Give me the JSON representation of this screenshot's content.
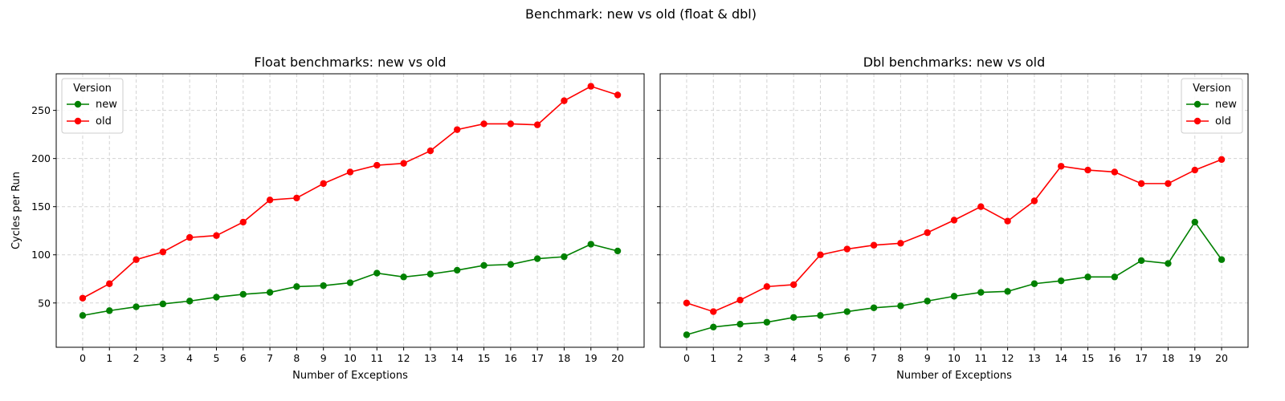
{
  "suptitle": "Benchmark: new vs old (float & dbl)",
  "colors": {
    "new": "#008000",
    "old": "#ff0000"
  },
  "chart_data": [
    {
      "type": "line",
      "title": "Float benchmarks: new vs old",
      "xlabel": "Number of Exceptions",
      "ylabel": "Cycles per Run",
      "x": [
        0,
        1,
        2,
        3,
        4,
        5,
        6,
        7,
        8,
        9,
        10,
        11,
        12,
        13,
        14,
        15,
        16,
        17,
        18,
        19,
        20
      ],
      "ylim": [
        4,
        288
      ],
      "yticks": [
        50,
        100,
        150,
        200,
        250
      ],
      "grid": true,
      "legend": {
        "title": "Version",
        "placement": "top-left"
      },
      "series": [
        {
          "name": "new",
          "color": "#008000",
          "values": [
            37,
            42,
            46,
            49,
            52,
            56,
            59,
            61,
            67,
            68,
            71,
            81,
            77,
            80,
            84,
            89,
            90,
            96,
            98,
            111,
            104
          ]
        },
        {
          "name": "old",
          "color": "#ff0000",
          "values": [
            55,
            70,
            95,
            103,
            118,
            120,
            134,
            157,
            159,
            174,
            186,
            193,
            195,
            208,
            230,
            236,
            236,
            235,
            260,
            275,
            266
          ]
        }
      ]
    },
    {
      "type": "line",
      "title": "Dbl benchmarks: new vs old",
      "xlabel": "Number of Exceptions",
      "ylabel": "",
      "x": [
        0,
        1,
        2,
        3,
        4,
        5,
        6,
        7,
        8,
        9,
        10,
        11,
        12,
        13,
        14,
        15,
        16,
        17,
        18,
        19,
        20
      ],
      "ylim": [
        4,
        288
      ],
      "yticks": [
        50,
        100,
        150,
        200,
        250
      ],
      "grid": true,
      "legend": {
        "title": "Version",
        "placement": "top-right"
      },
      "series": [
        {
          "name": "new",
          "color": "#008000",
          "values": [
            17,
            25,
            28,
            30,
            35,
            37,
            41,
            45,
            47,
            52,
            57,
            61,
            62,
            70,
            73,
            77,
            77,
            94,
            91,
            134,
            95
          ]
        },
        {
          "name": "old",
          "color": "#ff0000",
          "values": [
            50,
            41,
            53,
            67,
            69,
            100,
            106,
            110,
            112,
            123,
            136,
            150,
            135,
            156,
            192,
            188,
            186,
            174,
            174,
            188,
            199
          ]
        }
      ]
    }
  ]
}
